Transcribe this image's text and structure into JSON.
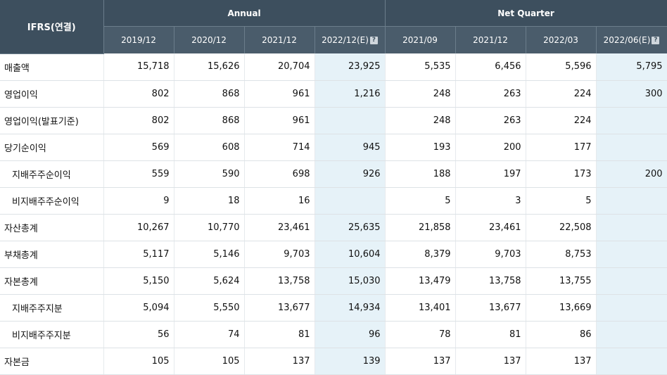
{
  "header": {
    "corner": "IFRS(연결)",
    "group_annual": "Annual",
    "group_quarter": "Net Quarter",
    "columns": [
      "2019/12",
      "2020/12",
      "2021/12",
      "2022/12(E)",
      "2021/09",
      "2021/12",
      "2022/03",
      "2022/06(E)"
    ],
    "estimate_columns": [
      3,
      7
    ],
    "help_glyph": "?"
  },
  "rows": [
    {
      "label": "매출액",
      "indent": false,
      "values": [
        "15,718",
        "15,626",
        "20,704",
        "23,925",
        "5,535",
        "6,456",
        "5,596",
        "5,795"
      ]
    },
    {
      "label": "영업이익",
      "indent": false,
      "values": [
        "802",
        "868",
        "961",
        "1,216",
        "248",
        "263",
        "224",
        "300"
      ]
    },
    {
      "label": "영업이익(발표기준)",
      "indent": false,
      "values": [
        "802",
        "868",
        "961",
        "",
        "248",
        "263",
        "224",
        ""
      ]
    },
    {
      "label": "당기순이익",
      "indent": false,
      "values": [
        "569",
        "608",
        "714",
        "945",
        "193",
        "200",
        "177",
        ""
      ]
    },
    {
      "label": "지배주주순이익",
      "indent": true,
      "values": [
        "559",
        "590",
        "698",
        "926",
        "188",
        "197",
        "173",
        "200"
      ]
    },
    {
      "label": "비지배주주순이익",
      "indent": true,
      "values": [
        "9",
        "18",
        "16",
        "",
        "5",
        "3",
        "5",
        ""
      ]
    },
    {
      "label": "자산총계",
      "indent": false,
      "values": [
        "10,267",
        "10,770",
        "23,461",
        "25,635",
        "21,858",
        "23,461",
        "22,508",
        ""
      ]
    },
    {
      "label": "부채총계",
      "indent": false,
      "values": [
        "5,117",
        "5,146",
        "9,703",
        "10,604",
        "8,379",
        "9,703",
        "8,753",
        ""
      ]
    },
    {
      "label": "자본총계",
      "indent": false,
      "values": [
        "5,150",
        "5,624",
        "13,758",
        "15,030",
        "13,479",
        "13,758",
        "13,755",
        ""
      ]
    },
    {
      "label": "지배주주지분",
      "indent": true,
      "values": [
        "5,094",
        "5,550",
        "13,677",
        "14,934",
        "13,401",
        "13,677",
        "13,669",
        ""
      ]
    },
    {
      "label": "비지배주주지분",
      "indent": true,
      "values": [
        "56",
        "74",
        "81",
        "96",
        "78",
        "81",
        "86",
        ""
      ]
    },
    {
      "label": "자본금",
      "indent": false,
      "values": [
        "105",
        "105",
        "137",
        "139",
        "137",
        "137",
        "137",
        ""
      ]
    }
  ],
  "colors": {
    "header_bg": "#3d4f5e",
    "subheader_bg": "#4a5c6b",
    "estimate_bg": "#e6f2f8"
  }
}
